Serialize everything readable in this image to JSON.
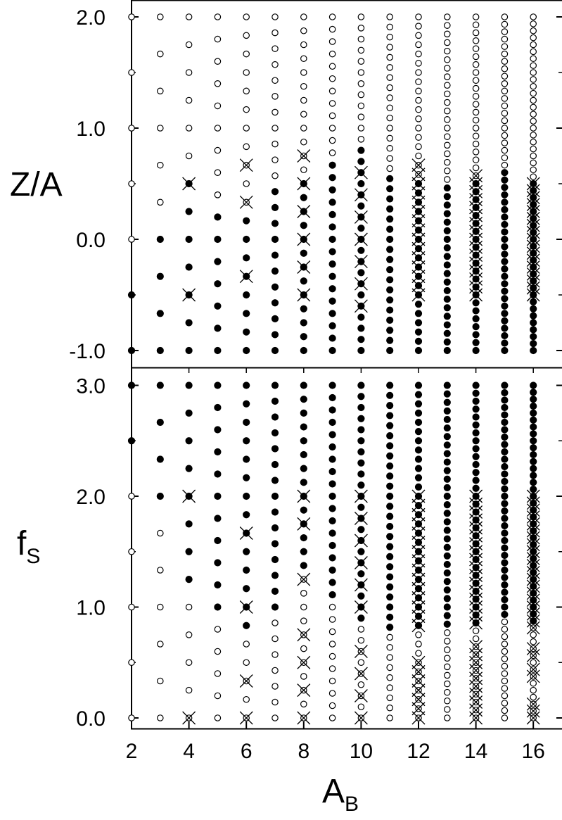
{
  "chart_data": [
    {
      "type": "scatter",
      "panel": "top",
      "xlabel": "",
      "ylabel": "Z/A",
      "ylim": [
        -1.1,
        2.05
      ],
      "yticks": [
        -1.0,
        0.0,
        1.0,
        2.0
      ],
      "ytick_labels": [
        "-1.0",
        "0.0",
        "1.0",
        "2.0"
      ],
      "yticks_minor": [
        -0.5,
        0.5,
        1.5
      ],
      "xlim": [
        2,
        17
      ],
      "x_values": [
        2,
        3,
        4,
        5,
        6,
        7,
        8,
        9,
        10,
        11,
        12,
        13,
        14,
        15,
        16
      ],
      "marker_rule": "At each A_B, points at Z/A = k/A_B from -1 to 2; filled if -1 <= Z/A <= zmax(A_B), open otherwise.",
      "zmax_filled": {
        "2": -0.5,
        "3": 0.0,
        "4": 0.5,
        "5": 0.2,
        "6": 0.333,
        "7": 0.429,
        "8": 0.5,
        "9": 0.667,
        "10": 0.8,
        "11": 0.636,
        "12": 0.583,
        "13": 0.538,
        "14": 0.571,
        "15": 0.6,
        "16": 0.5
      },
      "crosses": {
        "4": [
          -0.5,
          0.5
        ],
        "6": [
          -0.333,
          0.333,
          0.667
        ],
        "8": [
          -0.5,
          -0.25,
          0.0,
          0.25,
          0.5,
          0.75
        ],
        "10": [
          -0.6,
          -0.4,
          -0.2,
          0.0,
          0.2,
          0.4,
          0.6
        ],
        "12": [
          -0.5,
          -0.417,
          -0.333,
          -0.25,
          -0.167,
          -0.083,
          0.0,
          0.083,
          0.167,
          0.25,
          0.333,
          0.417,
          0.5,
          0.583,
          0.667
        ],
        "14": [
          -0.5,
          -0.429,
          -0.357,
          -0.286,
          -0.214,
          -0.143,
          -0.071,
          0.0,
          0.071,
          0.143,
          0.214,
          0.286,
          0.357,
          0.429,
          0.5,
          0.571
        ],
        "16": [
          -0.5,
          -0.438,
          -0.375,
          -0.313,
          -0.25,
          -0.188,
          -0.125,
          -0.063,
          0.0,
          0.063,
          0.125,
          0.188,
          0.25,
          0.313,
          0.375,
          0.438,
          0.5
        ]
      },
      "filled_color": "#000000",
      "open_color": "#000000"
    },
    {
      "type": "scatter",
      "panel": "bottom",
      "xlabel": "A_B",
      "xlabel_main": "A",
      "xlabel_sub": "B",
      "ylabel": "f_S",
      "ylabel_main": "f",
      "ylabel_sub": "S",
      "ylim": [
        -0.08,
        3.08
      ],
      "yticks": [
        0.0,
        1.0,
        2.0,
        3.0
      ],
      "ytick_labels": [
        "0.0",
        "1.0",
        "2.0",
        "3.0"
      ],
      "yticks_minor": [
        0.5,
        1.5,
        2.5
      ],
      "xlim": [
        2,
        17
      ],
      "xticks": [
        2,
        4,
        6,
        8,
        10,
        12,
        14,
        16
      ],
      "xtick_labels": [
        "2",
        "4",
        "6",
        "8",
        "10",
        "12",
        "14",
        "16"
      ],
      "x_values": [
        2,
        3,
        4,
        5,
        6,
        7,
        8,
        9,
        10,
        11,
        12,
        13,
        14,
        15,
        16
      ],
      "marker_rule": "At each A_B, points at f_S = k/A_B from 0 to 3; filled if f_S >= fmin(A_B), open otherwise.",
      "fmin_filled": {
        "2": 2.5,
        "3": 1.667,
        "4": 1.25,
        "5": 1.0,
        "6": 0.833,
        "7": 1.0,
        "8": 1.375,
        "9": 1.111,
        "10": 0.9,
        "11": 0.818,
        "12": 0.833,
        "13": 0.846,
        "14": 0.857,
        "15": 0.867,
        "16": 0.813
      },
      "crosses": {
        "4": [
          0.0,
          2.0
        ],
        "6": [
          0.0,
          0.333,
          1.0,
          1.667
        ],
        "8": [
          0.0,
          0.25,
          0.5,
          0.75,
          1.25,
          1.75,
          2.0
        ],
        "10": [
          0.0,
          0.2,
          0.4,
          0.6,
          1.0,
          1.2,
          1.4,
          1.6,
          1.8,
          2.0
        ],
        "12": [
          0.0,
          0.083,
          0.167,
          0.25,
          0.333,
          0.417,
          0.5,
          0.833,
          0.917,
          1.0,
          1.083,
          1.167,
          1.25,
          1.333,
          1.417,
          1.5,
          1.583,
          1.667,
          1.75,
          1.833,
          1.917,
          2.0
        ],
        "14": [
          0.0,
          0.071,
          0.143,
          0.214,
          0.286,
          0.357,
          0.429,
          0.5,
          0.571,
          0.643,
          0.857,
          0.929,
          1.0,
          1.071,
          1.143,
          1.214,
          1.286,
          1.357,
          1.429,
          1.5,
          1.571,
          1.643,
          1.714,
          1.786,
          1.857,
          1.929,
          2.0
        ],
        "16": [
          0.0,
          0.063,
          0.125,
          0.375,
          0.438,
          0.563,
          0.625,
          0.813,
          0.875,
          0.938,
          1.0,
          1.063,
          1.125,
          1.188,
          1.25,
          1.313,
          1.375,
          1.438,
          1.5,
          1.563,
          1.625,
          1.688,
          1.75,
          1.813,
          1.875,
          1.938,
          2.0
        ]
      }
    }
  ],
  "labels": {
    "top_ylabel": "Z/A",
    "bottom_ylabel_main": "f",
    "bottom_ylabel_sub": "S",
    "xlabel_main": "A",
    "xlabel_sub": "B"
  }
}
